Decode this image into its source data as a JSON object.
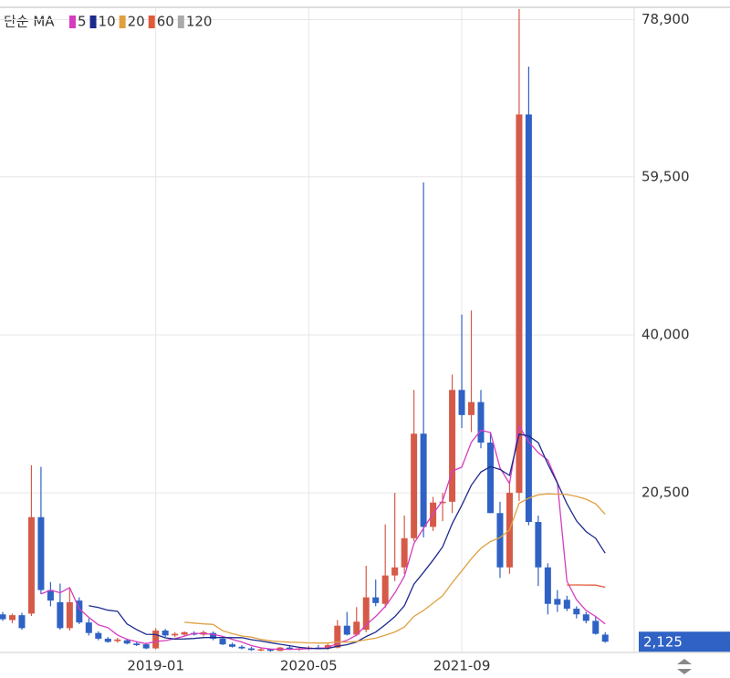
{
  "chart_data": {
    "type": "candlestick",
    "legend_title": "단순 MA",
    "moving_averages": [
      {
        "period": 5,
        "color": "#d63cc0"
      },
      {
        "period": 10,
        "color": "#1c2a8c"
      },
      {
        "period": 20,
        "color": "#e0a040"
      },
      {
        "period": 60,
        "color": "#e05a3a"
      },
      {
        "period": 120,
        "color": "#aaaaaa"
      }
    ],
    "up_color": "#d65a48",
    "down_color": "#2f62c4",
    "categories": [
      null,
      null,
      null,
      null,
      null,
      null,
      null,
      null,
      null,
      null,
      null,
      null,
      null,
      null,
      null,
      null,
      "2019-01",
      null,
      null,
      null,
      null,
      null,
      null,
      null,
      null,
      null,
      null,
      null,
      null,
      null,
      null,
      null,
      "2020-05",
      null,
      null,
      null,
      null,
      null,
      null,
      null,
      null,
      null,
      null,
      null,
      null,
      null,
      null,
      null,
      "2021-09",
      null,
      null,
      null,
      null,
      null,
      null,
      null,
      null,
      null,
      null,
      null,
      null,
      null,
      null,
      null
    ],
    "open": [
      5500,
      4800,
      5400,
      5600,
      17500,
      8500,
      7000,
      3800,
      7200,
      4500,
      3200,
      2500,
      2200,
      2300,
      1900,
      1800,
      1300,
      3500,
      2900,
      3000,
      3200,
      3000,
      3200,
      2500,
      1800,
      1500,
      1300,
      1100,
      1200,
      1000,
      1400,
      1200,
      1300,
      1400,
      1300,
      1400,
      4100,
      3000,
      3600,
      7600,
      6800,
      10300,
      11300,
      14900,
      27800,
      16300,
      19300,
      19400,
      33200,
      30100,
      31700,
      26700,
      18000,
      11300,
      20500,
      67200,
      16900,
      11300,
      7400,
      7300,
      6200,
      5500,
      4700,
      3000
    ],
    "high": [
      5800,
      5600,
      5700,
      23900,
      23700,
      9500,
      9300,
      8800,
      7600,
      5000,
      3400,
      2700,
      2600,
      2500,
      2100,
      2000,
      3800,
      3700,
      3300,
      3400,
      3400,
      3500,
      3400,
      2700,
      2000,
      1700,
      1500,
      1400,
      1300,
      1500,
      1600,
      1500,
      1600,
      1700,
      1900,
      4800,
      5800,
      6400,
      11500,
      9800,
      16600,
      20500,
      17700,
      33200,
      58800,
      20000,
      20500,
      35100,
      42500,
      43000,
      33200,
      28000,
      19400,
      22000,
      80200,
      73100,
      17700,
      11800,
      8500,
      7800,
      6500,
      5800,
      5200,
      3300
    ],
    "low": [
      4700,
      4400,
      3600,
      5300,
      8000,
      6500,
      3600,
      3500,
      4300,
      2900,
      2300,
      2000,
      2000,
      1800,
      1600,
      1200,
      1200,
      2700,
      2700,
      2800,
      2900,
      2800,
      2300,
      1700,
      1400,
      1200,
      1000,
      950,
      900,
      950,
      1100,
      1000,
      1100,
      1200,
      1100,
      1300,
      2900,
      2800,
      3300,
      6500,
      6300,
      9600,
      10500,
      14500,
      15000,
      15800,
      17000,
      18000,
      28500,
      28000,
      26000,
      18000,
      10000,
      10500,
      19500,
      16500,
      9000,
      5500,
      5800,
      5900,
      5000,
      4400,
      3000,
      2000
    ],
    "close": [
      4900,
      5400,
      3800,
      17500,
      8500,
      7200,
      3800,
      7000,
      4500,
      3200,
      2500,
      2100,
      2400,
      1900,
      1700,
      1300,
      3500,
      2900,
      3100,
      3300,
      3000,
      3300,
      2500,
      1800,
      1500,
      1300,
      1100,
      1200,
      1000,
      1400,
      1200,
      1300,
      1400,
      1300,
      1700,
      4100,
      3000,
      4600,
      7600,
      6900,
      10300,
      11300,
      14900,
      27800,
      16300,
      19300,
      19400,
      33200,
      30100,
      31700,
      26700,
      18000,
      11300,
      20500,
      67200,
      16900,
      11300,
      6800,
      6700,
      6200,
      5500,
      4700,
      3100,
      2125
    ],
    "ylim": [
      800,
      80200
    ],
    "yticks": [
      {
        "value": 78900,
        "label": "78,900"
      },
      {
        "value": 59500,
        "label": "59,500"
      },
      {
        "value": 40000,
        "label": "40,000"
      },
      {
        "value": 20500,
        "label": "20,500"
      }
    ],
    "last_price": {
      "value": 2125,
      "label": "2,125"
    },
    "grid": true
  }
}
